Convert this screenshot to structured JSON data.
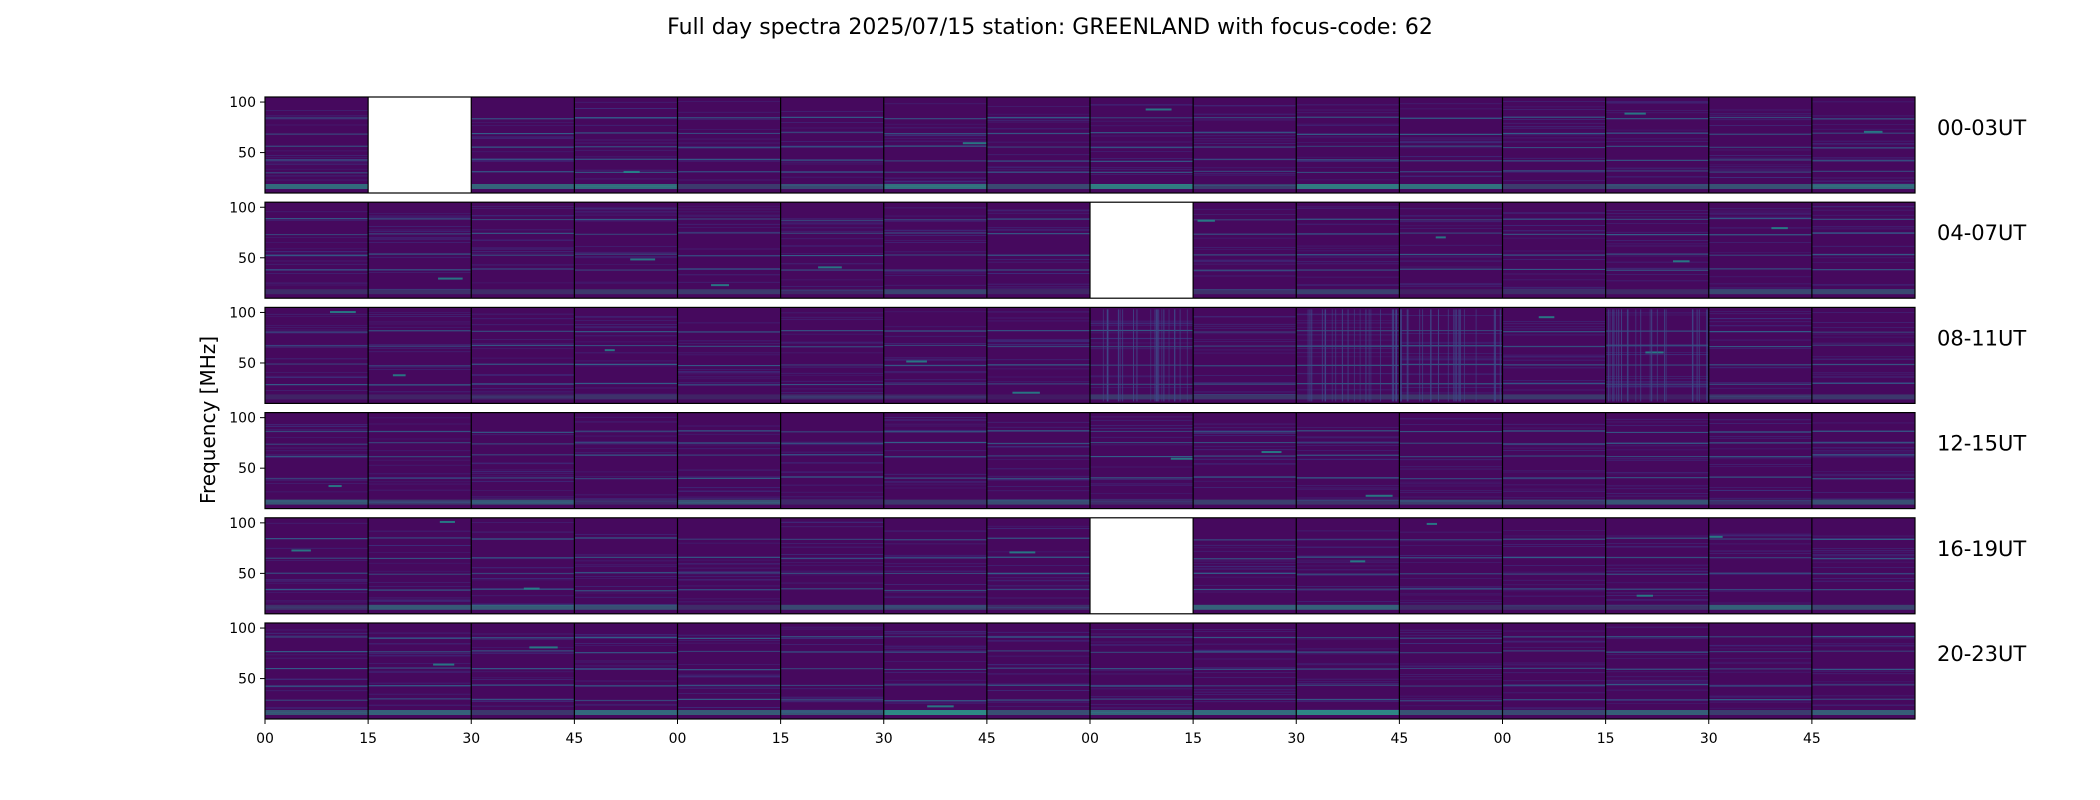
{
  "chart_data": {
    "type": "heatmap",
    "title": "Full day spectra 2025/07/15 station: GREENLAND with focus-code: 62",
    "ylabel": "Frequency [MHz]",
    "xlabel": "",
    "ylim": [
      10,
      105
    ],
    "yticks": [
      50,
      100
    ],
    "xtick_labels": [
      "00",
      "15",
      "30",
      "45",
      "00",
      "15",
      "30",
      "45",
      "00",
      "15",
      "30",
      "45",
      "00",
      "15",
      "30",
      "45"
    ],
    "colormap": "viridis",
    "background_color": "#46095e",
    "missing_color": "#ffffff",
    "rows": [
      {
        "label": "00-03UT",
        "missing": [
          1
        ],
        "lines": [
          0.22,
          0.38,
          0.52,
          0.66,
          0.78
        ],
        "low_band": 0.9
      },
      {
        "label": "04-07UT",
        "missing": [
          8
        ],
        "lines": [
          0.18,
          0.33,
          0.55,
          0.7
        ],
        "low_band": 0.5
      },
      {
        "label": "08-11UT",
        "missing": [],
        "lines": [
          0.25,
          0.4,
          0.6,
          0.8
        ],
        "low_band": 0.4,
        "interference_panels": [
          8,
          10,
          11,
          13
        ]
      },
      {
        "label": "12-15UT",
        "missing": [],
        "lines": [
          0.2,
          0.32,
          0.45,
          0.68
        ],
        "low_band": 0.6
      },
      {
        "label": "16-19UT",
        "missing": [
          8
        ],
        "lines": [
          0.22,
          0.42,
          0.58,
          0.75
        ],
        "low_band": 0.7
      },
      {
        "label": "20-23UT",
        "missing": [],
        "lines": [
          0.15,
          0.3,
          0.48,
          0.65,
          0.8
        ],
        "low_band": 1.0
      }
    ]
  }
}
